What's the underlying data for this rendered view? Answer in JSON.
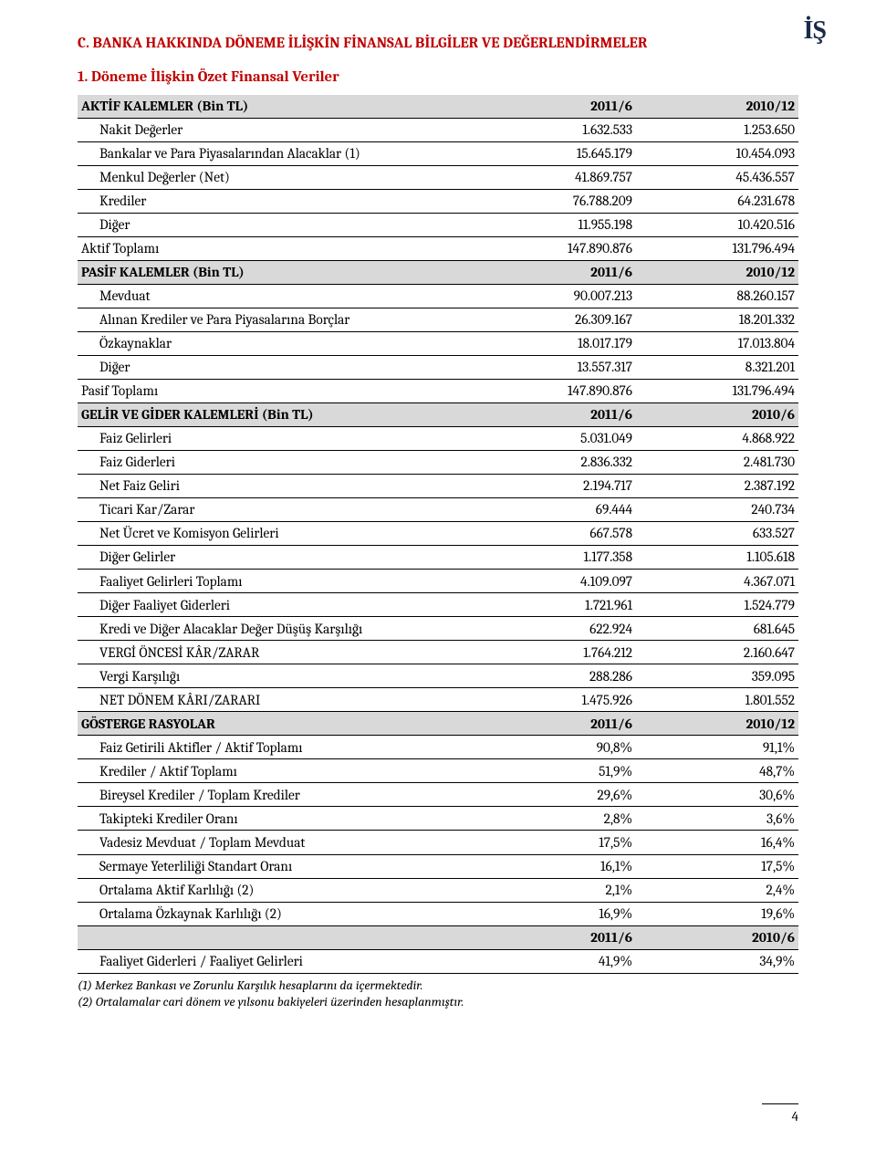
{
  "logo_text": "İŞ",
  "section_title": "C. BANKA HAKKINDA DÖNEME İLİŞKİN FİNANSAL BİLGİLER VE DEĞERLENDİRMELER",
  "subsection_title": "1. Döneme İlişkin Özet Finansal Veriler",
  "page_number": "4",
  "footnotes": [
    "(1) Merkez Bankası ve Zorunlu Karşılık hesaplarını da içermektedir.",
    "(2) Ortalamalar cari dönem ve yılsonu bakiyeleri üzerinden hesaplanmıştır."
  ],
  "rows": [
    {
      "type": "header",
      "label": "AKTİF KALEMLER (Bin TL)",
      "c1": "2011/6",
      "c2": "2010/12"
    },
    {
      "type": "indent",
      "label": "Nakit Değerler",
      "c1": "1.632.533",
      "c2": "1.253.650"
    },
    {
      "type": "indent",
      "label": "Bankalar ve Para Piyasalarından Alacaklar (1)",
      "c1": "15.645.179",
      "c2": "10.454.093"
    },
    {
      "type": "indent",
      "label": "Menkul Değerler (Net)",
      "c1": "41.869.757",
      "c2": "45.436.557"
    },
    {
      "type": "indent",
      "label": "Krediler",
      "c1": "76.788.209",
      "c2": "64.231.678"
    },
    {
      "type": "indent",
      "label": "Diğer",
      "c1": "11.955.198",
      "c2": "10.420.516"
    },
    {
      "type": "normal",
      "label": "Aktif Toplamı",
      "c1": "147.890.876",
      "c2": "131.796.494"
    },
    {
      "type": "header",
      "label": "PASİF KALEMLER (Bin TL)",
      "c1": "2011/6",
      "c2": "2010/12"
    },
    {
      "type": "indent",
      "label": "Mevduat",
      "c1": "90.007.213",
      "c2": "88.260.157"
    },
    {
      "type": "indent",
      "label": "Alınan Krediler ve Para Piyasalarına Borçlar",
      "c1": "26.309.167",
      "c2": "18.201.332"
    },
    {
      "type": "indent",
      "label": "Özkaynaklar",
      "c1": "18.017.179",
      "c2": "17.013.804"
    },
    {
      "type": "indent",
      "label": "Diğer",
      "c1": "13.557.317",
      "c2": "8.321.201"
    },
    {
      "type": "normal",
      "label": "Pasif Toplamı",
      "c1": "147.890.876",
      "c2": "131.796.494"
    },
    {
      "type": "header",
      "label": "GELİR VE GİDER KALEMLERİ  (Bin TL)",
      "c1": "2011/6",
      "c2": "2010/6"
    },
    {
      "type": "indent",
      "label": "Faiz Gelirleri",
      "c1": "5.031.049",
      "c2": "4.868.922"
    },
    {
      "type": "indent",
      "label": "Faiz Giderleri",
      "c1": "2.836.332",
      "c2": "2.481.730"
    },
    {
      "type": "indent",
      "label": "Net Faiz Geliri",
      "c1": "2.194.717",
      "c2": "2.387.192"
    },
    {
      "type": "indent",
      "label": "Ticari Kar/Zarar",
      "c1": "69.444",
      "c2": "240.734"
    },
    {
      "type": "indent",
      "label": "Net Ücret ve Komisyon Gelirleri",
      "c1": "667.578",
      "c2": "633.527"
    },
    {
      "type": "indent",
      "label": "Diğer Gelirler",
      "c1": "1.177.358",
      "c2": "1.105.618"
    },
    {
      "type": "indent",
      "label": "Faaliyet Gelirleri Toplamı",
      "c1": "4.109.097",
      "c2": "4.367.071"
    },
    {
      "type": "indent",
      "label": "Diğer Faaliyet Giderleri",
      "c1": "1.721.961",
      "c2": "1.524.779"
    },
    {
      "type": "indent",
      "label": "Kredi ve Diğer Alacaklar Değer Düşüş Karşılığı",
      "c1": "622.924",
      "c2": "681.645"
    },
    {
      "type": "indent",
      "label": "VERGİ ÖNCESİ KÂR/ZARAR",
      "c1": "1.764.212",
      "c2": "2.160.647"
    },
    {
      "type": "indent",
      "label": "Vergi Karşılığı",
      "c1": "288.286",
      "c2": "359.095"
    },
    {
      "type": "indent",
      "label": "NET DÖNEM KÂRI/ZARARI",
      "c1": "1.475.926",
      "c2": "1.801.552"
    },
    {
      "type": "header",
      "label": "GÖSTERGE RASYOLAR",
      "c1": "2011/6",
      "c2": "2010/12"
    },
    {
      "type": "indent",
      "label": "Faiz Getirili Aktifler / Aktif Toplamı",
      "c1": "90,8%",
      "c2": "91,1%"
    },
    {
      "type": "indent",
      "label": "Krediler / Aktif Toplamı",
      "c1": "51,9%",
      "c2": "48,7%"
    },
    {
      "type": "indent",
      "label": "Bireysel Krediler / Toplam Krediler",
      "c1": "29,6%",
      "c2": "30,6%"
    },
    {
      "type": "indent",
      "label": "Takipteki Krediler Oranı",
      "c1": "2,8%",
      "c2": "3,6%"
    },
    {
      "type": "indent",
      "label": "Vadesiz Mevduat / Toplam Mevduat",
      "c1": "17,5%",
      "c2": "16,4%"
    },
    {
      "type": "indent",
      "label": "Sermaye Yeterliliği Standart Oranı",
      "c1": "16,1%",
      "c2": "17,5%"
    },
    {
      "type": "indent",
      "label": "Ortalama Aktif Karlılığı (2)",
      "c1": "2,1%",
      "c2": "2,4%"
    },
    {
      "type": "indent",
      "label": "Ortalama Özkaynak Karlılığı (2)",
      "c1": "16,9%",
      "c2": "19,6%"
    },
    {
      "type": "subheader",
      "label": "",
      "c1": "2011/6",
      "c2": "2010/6"
    },
    {
      "type": "indent",
      "label": "Faaliyet Giderleri / Faaliyet Gelirleri",
      "c1": "41,9%",
      "c2": "34,9%"
    }
  ]
}
